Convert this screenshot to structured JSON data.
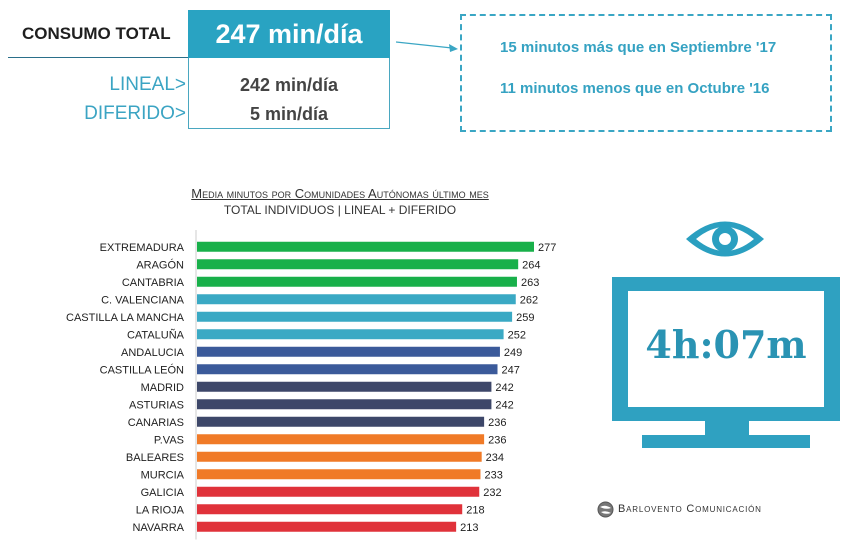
{
  "summary": {
    "total_label": "CONSUMO TOTAL",
    "total_value": "247 min/día",
    "lineal_label": "LINEAL>",
    "lineal_value": "242 min/día",
    "diferido_label": "DIFERIDO>",
    "diferido_value": "5 min/día"
  },
  "callout": {
    "line1": "15 minutos más que en Septiembre '17",
    "line2": "11 minutos menos que en Octubre '16"
  },
  "tv": {
    "time": "4h:07m",
    "icon": "eye-icon"
  },
  "brand": {
    "name": "Barlovento Comunicación",
    "icon": "globe-logo-icon"
  },
  "colors": {
    "accent": "#29a3c2",
    "green": "#18b04a",
    "teal": "#3aa9c4",
    "navy": "#3b5a9a",
    "darknavy": "#3d4769",
    "orange": "#f07a27",
    "red": "#e0323a"
  },
  "chart_data": {
    "type": "bar",
    "orientation": "horizontal",
    "title": "Media minutos por Comunidades Autónomas último mes",
    "subtitle": "TOTAL INDIVIDUOS  | LINEAL + DIFERIDO",
    "categories": [
      "EXTREMADURA",
      "ARAGÓN",
      "CANTABRIA",
      "C. VALENCIANA",
      "CASTILLA LA MANCHA",
      "CATALUÑA",
      "ANDALUCIA",
      "CASTILLA LEÓN",
      "MADRID",
      "ASTURIAS",
      "CANARIAS",
      "P.VAS",
      "BALEARES",
      "MURCIA",
      "GALICIA",
      "LA RIOJA",
      "NAVARRA"
    ],
    "values": [
      277,
      264,
      263,
      262,
      259,
      252,
      249,
      247,
      242,
      242,
      236,
      236,
      234,
      233,
      232,
      218,
      213
    ],
    "bar_colors": [
      "#18b04a",
      "#18b04a",
      "#18b04a",
      "#3aa9c4",
      "#3aa9c4",
      "#3aa9c4",
      "#3b5a9a",
      "#3b5a9a",
      "#3d4769",
      "#3d4769",
      "#3d4769",
      "#f07a27",
      "#f07a27",
      "#f07a27",
      "#e0323a",
      "#e0323a",
      "#e0323a"
    ],
    "xlim": [
      0,
      277
    ],
    "grid": false,
    "data_labels": true
  }
}
